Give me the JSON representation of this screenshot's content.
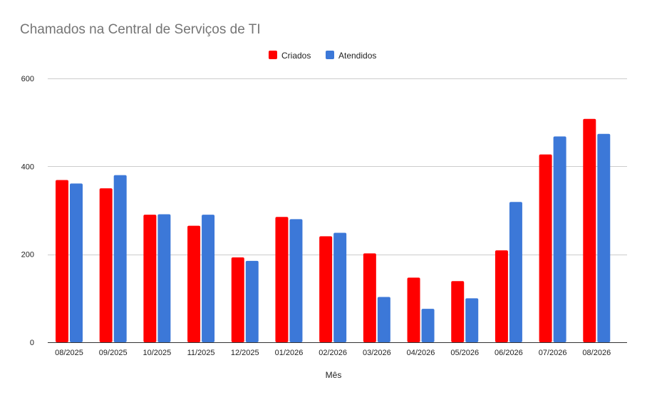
{
  "chart_data": {
    "type": "bar",
    "title": "Chamados na Central de Serviços de TI",
    "xlabel": "Mês",
    "ylabel": "",
    "categories": [
      "08/2025",
      "09/2025",
      "10/2025",
      "11/2025",
      "12/2025",
      "01/2026",
      "02/2026",
      "03/2026",
      "04/2026",
      "05/2026",
      "06/2026",
      "07/2026",
      "08/2026"
    ],
    "series": [
      {
        "name": "Criados",
        "color": "#ff0000",
        "values": [
          369,
          350,
          290,
          265,
          193,
          285,
          241,
          202,
          147,
          139,
          209,
          427,
          508
        ]
      },
      {
        "name": "Atendidos",
        "color": "#3c78d8",
        "values": [
          361,
          380,
          291,
          290,
          185,
          280,
          249,
          103,
          76,
          100,
          319,
          468,
          474
        ]
      }
    ],
    "ylim": [
      0,
      600
    ],
    "yticks": [
      0,
      200,
      400,
      600
    ],
    "grid": true,
    "legend": "top-center"
  }
}
